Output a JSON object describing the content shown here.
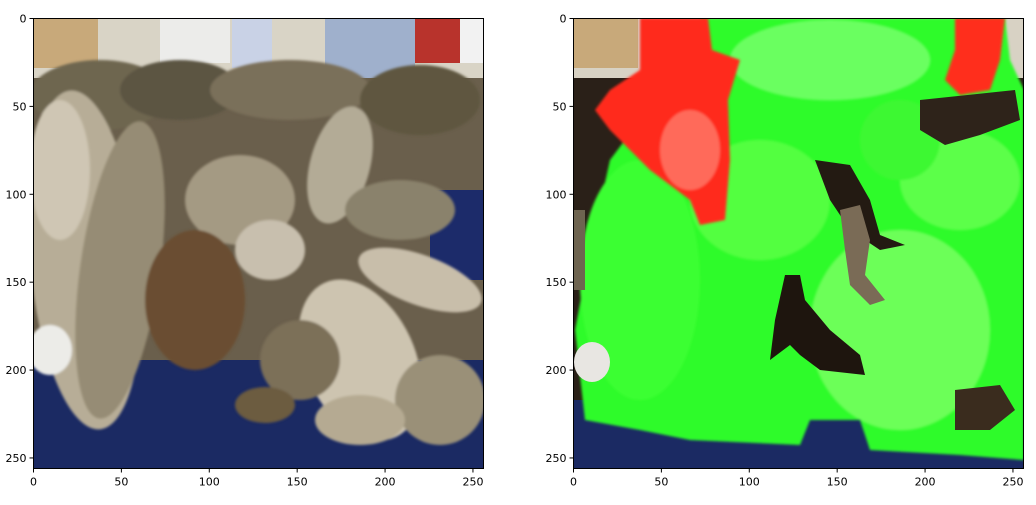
{
  "figure": {
    "background": "#ffffff"
  },
  "chart_data": [
    {
      "type": "image",
      "name": "original-image",
      "xlim": [
        0,
        256
      ],
      "ylim": [
        256,
        0
      ],
      "xticks": [
        0,
        50,
        100,
        150,
        200,
        250
      ],
      "yticks": [
        0,
        50,
        100,
        150,
        200,
        250
      ],
      "xtick_labels": [
        "0",
        "50",
        "100",
        "150",
        "200",
        "250"
      ],
      "ytick_labels": [
        "0",
        "50",
        "100",
        "150",
        "200",
        "250"
      ],
      "grid": false,
      "colors": {
        "shell_light": "#c8bfae",
        "shell_mid": "#8e846c",
        "shell_dark": "#4a4232",
        "tray_blue": "#1a2a66",
        "background_white": "#e8e6e0"
      }
    },
    {
      "type": "image",
      "name": "segmentation-overlay",
      "xlim": [
        0,
        256
      ],
      "ylim": [
        256,
        0
      ],
      "xticks": [
        0,
        50,
        100,
        150,
        200,
        250
      ],
      "yticks": [
        0,
        50,
        100,
        150,
        200,
        250
      ],
      "xtick_labels": [
        "0",
        "50",
        "100",
        "150",
        "200",
        "250"
      ],
      "ytick_labels": [
        "0",
        "50",
        "100",
        "150",
        "200",
        "250"
      ],
      "grid": false,
      "colors": {
        "mask_green": "#22ff22",
        "mask_green_light": "#7dff6a",
        "mask_red": "#ff2a1a",
        "unmasked_dark": "#2a2018",
        "tray_blue": "#1a2a66"
      }
    }
  ]
}
